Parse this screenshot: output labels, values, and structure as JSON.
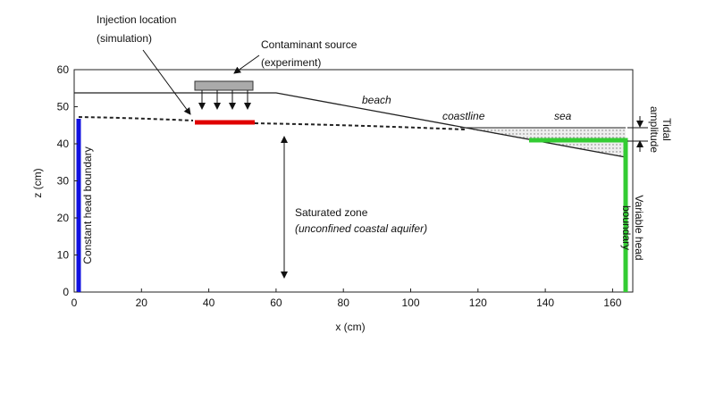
{
  "axes": {
    "xlabel": "x (cm)",
    "ylabel": "z (cm)",
    "xlim": [
      0,
      166
    ],
    "ylim": [
      0,
      60
    ],
    "xticks": [
      0,
      20,
      40,
      60,
      80,
      100,
      120,
      140,
      160
    ],
    "yticks": [
      0,
      10,
      20,
      30,
      40,
      50,
      60
    ]
  },
  "labels": {
    "injection": [
      "Injection location",
      "(simulation)"
    ],
    "source": [
      "Contaminant source",
      "(experiment)"
    ],
    "beach": "beach",
    "coastline": "coastline",
    "sea": "sea",
    "tidal": [
      "Tidal",
      "amplitude"
    ],
    "saturated": [
      "Saturated zone",
      "(unconfined coastal aquifer)"
    ],
    "constant": "Constant head boundary",
    "variable": [
      "Variable head",
      "boundary"
    ]
  }
}
